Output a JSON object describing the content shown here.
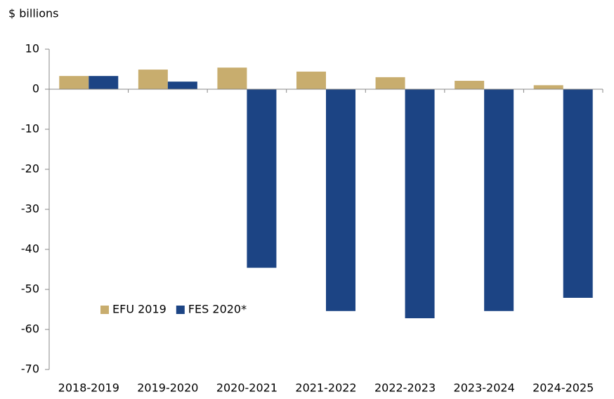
{
  "chart_data": {
    "type": "bar",
    "y_axis_label": "$ billions",
    "categories": [
      "2018-2019",
      "2019-2020",
      "2020-2021",
      "2021-2022",
      "2022-2023",
      "2023-2024",
      "2024-2025"
    ],
    "series": [
      {
        "name": "EFU 2019",
        "color": "#c8ad6e",
        "values": [
          3.3,
          4.9,
          5.4,
          4.4,
          3.0,
          2.1,
          1.0
        ]
      },
      {
        "name": "FES 2020*",
        "color": "#1c4484",
        "values": [
          3.3,
          1.9,
          -44.6,
          -55.4,
          -57.2,
          -55.4,
          -52.1
        ]
      }
    ],
    "ylim": [
      -70,
      10
    ],
    "yticks": [
      -70,
      -60,
      -50,
      -40,
      -30,
      -20,
      -10,
      0,
      10
    ],
    "legend": "lower left"
  }
}
